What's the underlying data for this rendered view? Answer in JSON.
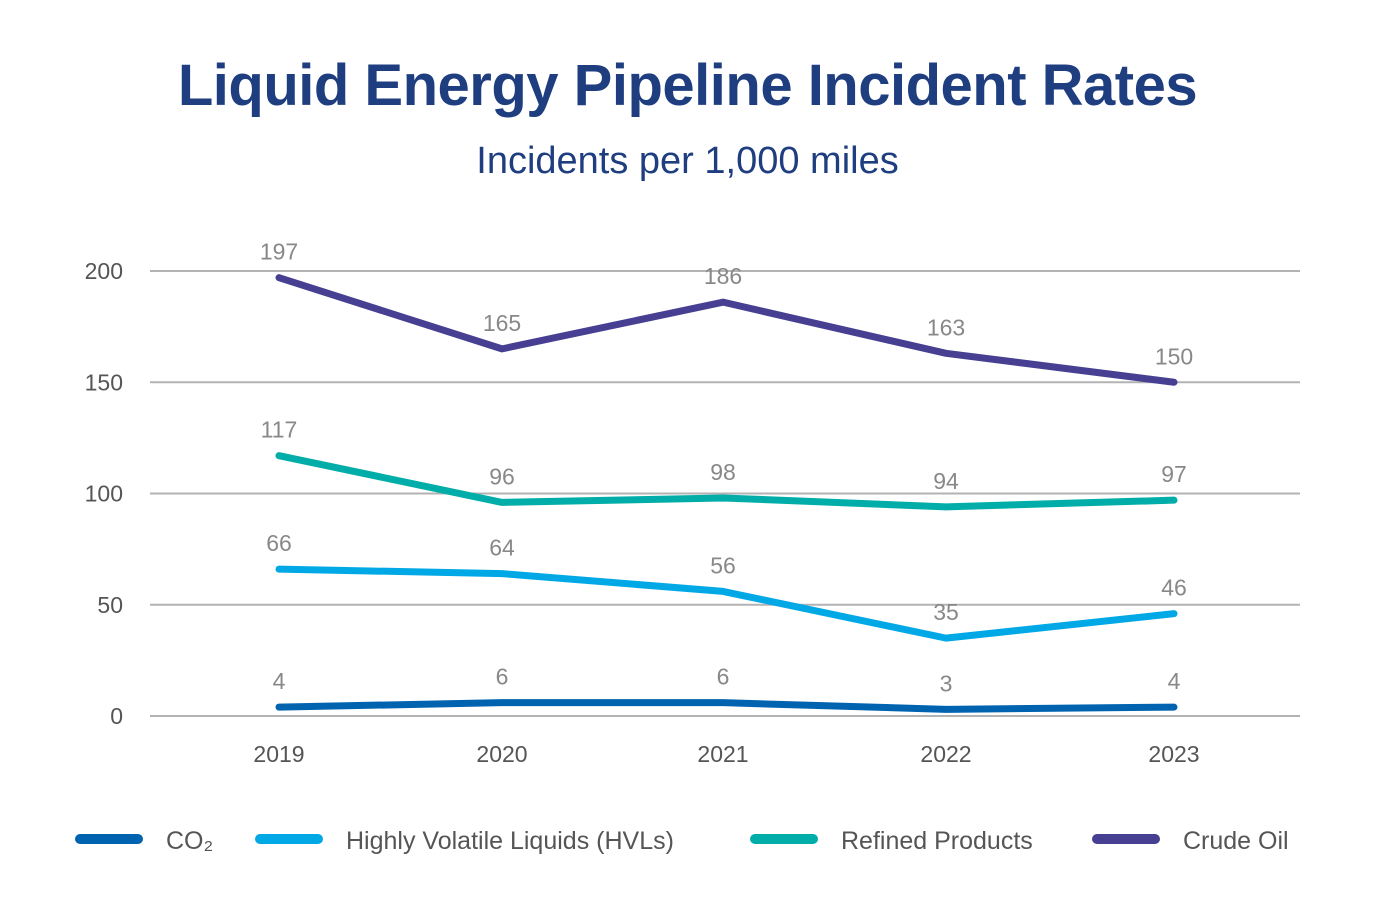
{
  "chart_data": {
    "type": "line",
    "title": "Liquid Energy Pipeline Incident Rates",
    "subtitle": "Incidents per 1,000 miles",
    "categories": [
      "2019",
      "2020",
      "2021",
      "2022",
      "2023"
    ],
    "ylim": [
      0,
      200
    ],
    "yticks": [
      0,
      50,
      100,
      150,
      200
    ],
    "grid": true,
    "legend_position": "bottom",
    "series": [
      {
        "name": "CO₂",
        "color": "#0063b0",
        "values": [
          4,
          6,
          6,
          3,
          4
        ]
      },
      {
        "name": "Highly Volatile Liquids (HVLs)",
        "color": "#00a9e6",
        "values": [
          66,
          64,
          56,
          35,
          46
        ]
      },
      {
        "name": "Refined Products",
        "color": "#00ada8",
        "values": [
          117,
          96,
          98,
          94,
          97
        ]
      },
      {
        "name": "Crude Oil",
        "color": "#473f91",
        "values": [
          197,
          165,
          186,
          163,
          150
        ]
      }
    ]
  }
}
